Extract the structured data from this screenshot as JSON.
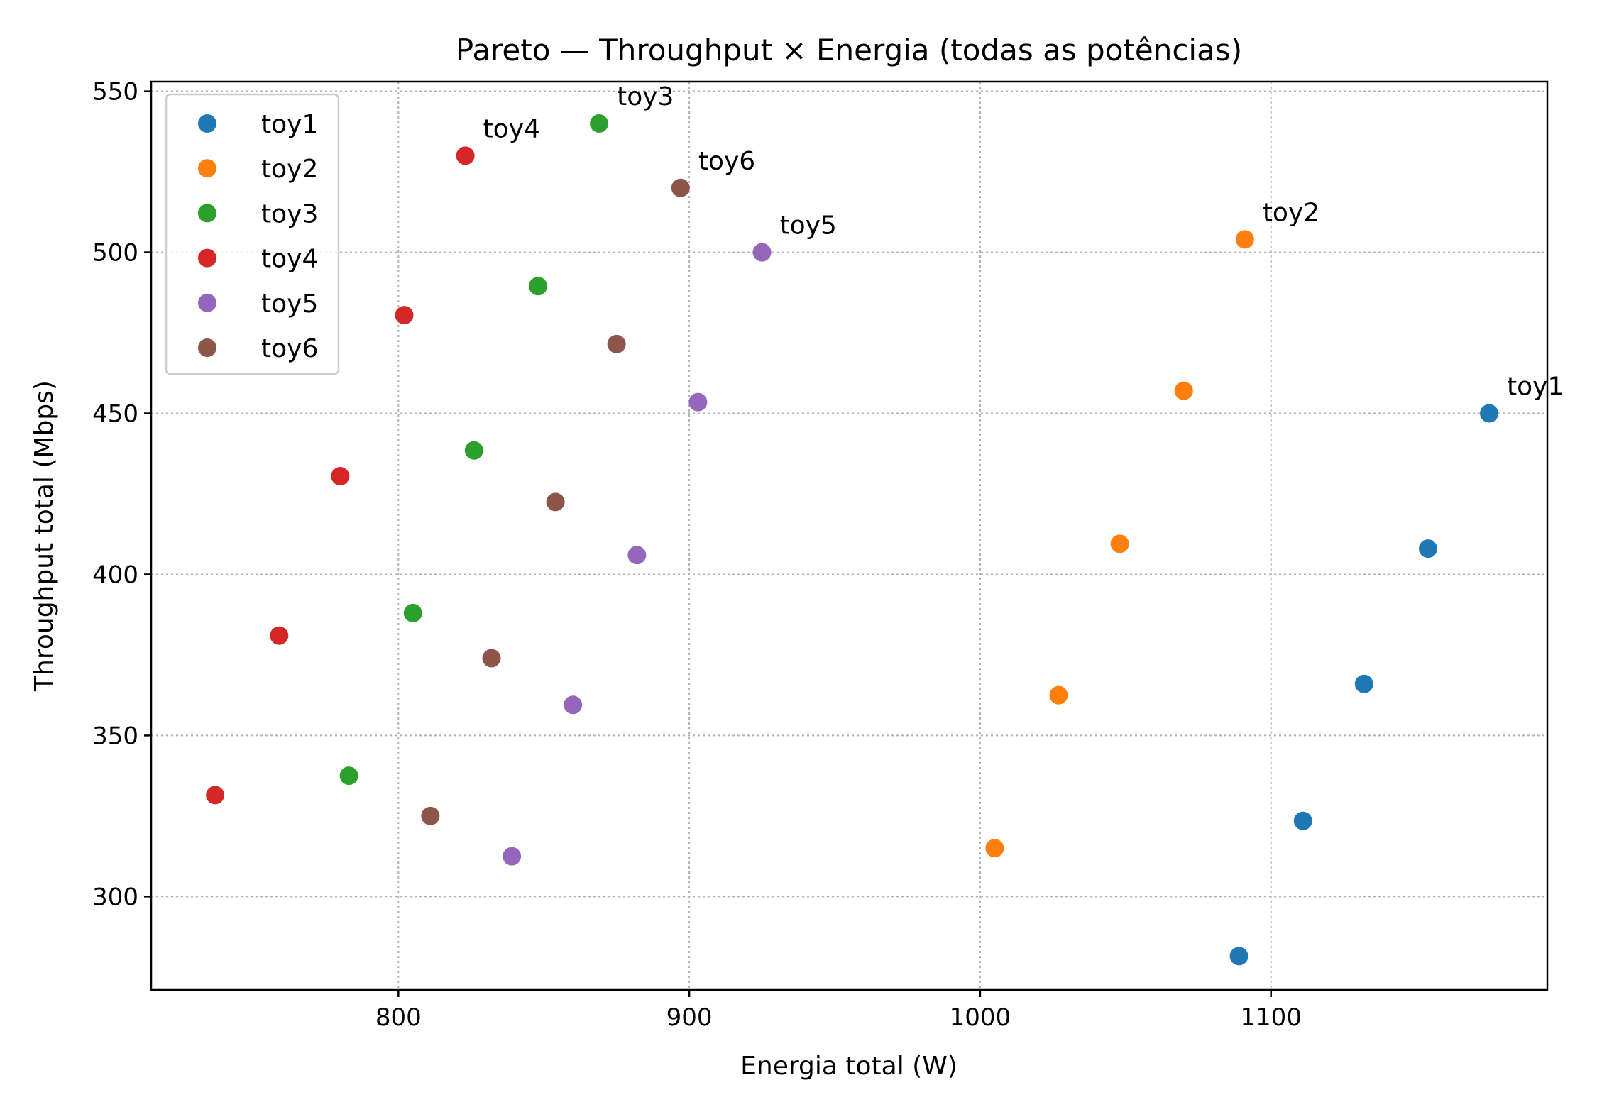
{
  "chart_data": {
    "type": "scatter",
    "title": "Pareto — Throughput × Energia (todas as potências)",
    "xlabel": "Energia total (W)",
    "ylabel": "Throughput total (Mbps)",
    "xlim": [
      715,
      1195
    ],
    "ylim": [
      271,
      553
    ],
    "xticks": [
      800,
      900,
      1000,
      1100
    ],
    "yticks": [
      300,
      350,
      400,
      450,
      500,
      550
    ],
    "grid": true,
    "legend_position": "upper-left",
    "series": [
      {
        "name": "toy1",
        "color": "#1f77b4",
        "points": [
          [
            1089,
            281.5
          ],
          [
            1111,
            323.5
          ],
          [
            1132,
            366
          ],
          [
            1154,
            408
          ],
          [
            1175,
            450
          ]
        ]
      },
      {
        "name": "toy2",
        "color": "#ff7f0e",
        "points": [
          [
            1005,
            315
          ],
          [
            1027,
            362.5
          ],
          [
            1048,
            409.5
          ],
          [
            1070,
            457
          ],
          [
            1091,
            504
          ]
        ]
      },
      {
        "name": "toy3",
        "color": "#2ca02c",
        "points": [
          [
            783,
            337.5
          ],
          [
            805,
            388
          ],
          [
            826,
            438.5
          ],
          [
            848,
            489.5
          ],
          [
            869,
            540
          ]
        ]
      },
      {
        "name": "toy4",
        "color": "#d62728",
        "points": [
          [
            737,
            331.5
          ],
          [
            759,
            381
          ],
          [
            780,
            430.5
          ],
          [
            802,
            480.5
          ],
          [
            823,
            530
          ]
        ]
      },
      {
        "name": "toy5",
        "color": "#9467bd",
        "points": [
          [
            839,
            312.5
          ],
          [
            860,
            359.5
          ],
          [
            882,
            406
          ],
          [
            903,
            453.5
          ],
          [
            925,
            500
          ]
        ]
      },
      {
        "name": "toy6",
        "color": "#8c564b",
        "points": [
          [
            811,
            325
          ],
          [
            832,
            374
          ],
          [
            854,
            422.5
          ],
          [
            875,
            471.5
          ],
          [
            897,
            520
          ]
        ]
      }
    ],
    "annotations": [
      {
        "text": "toy1",
        "x": 1175,
        "y": 450
      },
      {
        "text": "toy2",
        "x": 1091,
        "y": 504
      },
      {
        "text": "toy3",
        "x": 869,
        "y": 540
      },
      {
        "text": "toy4",
        "x": 823,
        "y": 530
      },
      {
        "text": "toy5",
        "x": 925,
        "y": 500
      },
      {
        "text": "toy6",
        "x": 897,
        "y": 520
      }
    ]
  }
}
